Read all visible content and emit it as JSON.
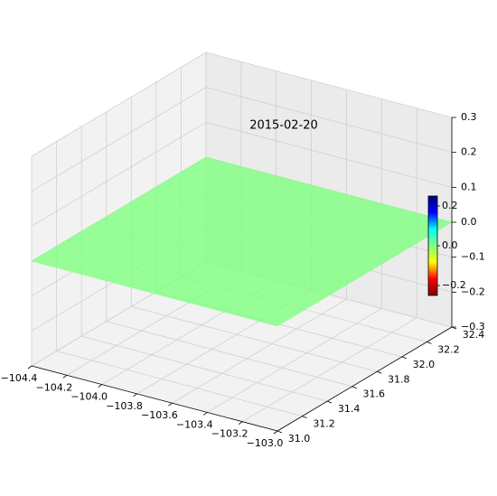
{
  "chart_data": {
    "type": "surface3d",
    "title": "2015-02-20",
    "xlim": [
      -104.4,
      -103.0
    ],
    "xticks": [
      {
        "value": -104.4,
        "label": "−104.4"
      },
      {
        "value": -104.2,
        "label": "−104.2"
      },
      {
        "value": -104.0,
        "label": "−104.0"
      },
      {
        "value": -103.8,
        "label": "−103.8"
      },
      {
        "value": -103.6,
        "label": "−103.6"
      },
      {
        "value": -103.4,
        "label": "−103.4"
      },
      {
        "value": -103.2,
        "label": "−103.2"
      },
      {
        "value": -103.0,
        "label": "−103.0"
      }
    ],
    "ylim": [
      31.0,
      32.4
    ],
    "yticks": [
      {
        "value": 31.0,
        "label": "31.0"
      },
      31.2,
      31.4,
      31.6,
      31.8,
      {
        "value": 32.0,
        "label": "32.0"
      },
      32.2,
      32.4
    ],
    "zlim": [
      -0.3,
      0.3
    ],
    "zticks": [
      {
        "value": -0.3,
        "label": "−0.3"
      },
      {
        "value": -0.2,
        "label": "−0.2"
      },
      {
        "value": -0.1,
        "label": "−0.1"
      },
      {
        "value": 0.0,
        "label": "0.0"
      },
      0.1,
      0.2,
      0.3
    ],
    "surface": {
      "x": [
        -104.4,
        -103.0
      ],
      "y": [
        31.0,
        32.4
      ],
      "z": [
        [
          0,
          0
        ],
        [
          0,
          0
        ]
      ],
      "color": "#7fff7f",
      "alpha": 0.8
    },
    "grid": true,
    "colorbar": {
      "lim": [
        -0.25,
        0.25
      ],
      "ticks": [
        {
          "value": -0.2,
          "label": "−0.2"
        },
        {
          "value": 0.0,
          "label": "0.0"
        },
        0.2
      ],
      "colors": [
        "#7f0000",
        "#ff0000",
        "#ffff00",
        "#7fff7f",
        "#00ffff",
        "#0000ff",
        "#00007f"
      ]
    }
  }
}
